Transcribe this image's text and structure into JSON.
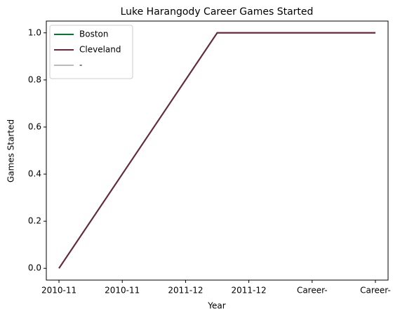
{
  "chart_data": {
    "type": "line",
    "title": "Luke Harangody Career Games Started",
    "xlabel": "Year",
    "ylabel": "Games Started",
    "x": [
      0,
      2.5,
      5
    ],
    "series": [
      {
        "name": "Boston",
        "color": "#007a33",
        "values": [
          0,
          1,
          1
        ]
      },
      {
        "name": "Cleveland",
        "color": "#6f263d",
        "values": [
          0,
          1,
          1
        ]
      },
      {
        "name": "-",
        "color": "#bbbbbb",
        "values": [
          null,
          null,
          null
        ]
      }
    ],
    "xlim": [
      -0.2,
      5.2
    ],
    "xticks": [
      {
        "value": 0,
        "label": "2010-11"
      },
      {
        "value": 1,
        "label": "2010-11"
      },
      {
        "value": 2,
        "label": "2011-12"
      },
      {
        "value": 3,
        "label": "2011-12"
      },
      {
        "value": 4,
        "label": "Career-"
      },
      {
        "value": 5,
        "label": "Career-"
      }
    ],
    "ylim": [
      -0.05,
      1.05
    ],
    "yticks": [
      {
        "value": 0,
        "label": "0.0"
      },
      {
        "value": 0.2,
        "label": "0.2"
      },
      {
        "value": 0.4,
        "label": "0.4"
      },
      {
        "value": 0.6,
        "label": "0.6"
      },
      {
        "value": 0.8,
        "label": "0.8"
      },
      {
        "value": 1,
        "label": "1.0"
      }
    ],
    "legend": "upper left"
  }
}
